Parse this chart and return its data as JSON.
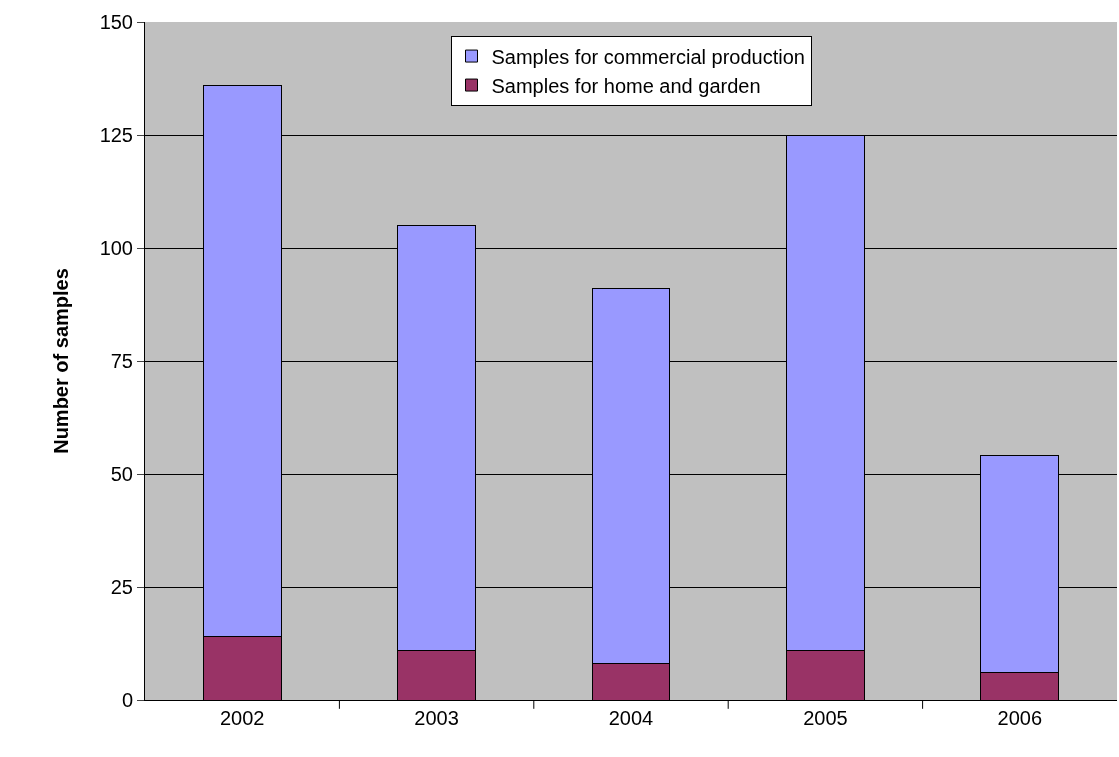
{
  "chart_data": {
    "type": "bar",
    "ylabel": "Number of samples",
    "categories": [
      "2002",
      "2003",
      "2004",
      "2005",
      "2006"
    ],
    "stacked": true,
    "series": [
      {
        "name": "Samples for home and garden",
        "color": "#993366",
        "values": [
          14,
          11,
          8,
          11,
          6
        ]
      },
      {
        "name": "Samples for commercial production",
        "color": "#9999ff",
        "values": [
          122,
          94,
          83,
          114,
          48
        ]
      }
    ],
    "ylim": [
      0,
      150
    ],
    "yticks": [
      0,
      25,
      50,
      75,
      100,
      125,
      150
    ],
    "grid": "y",
    "legend": "top"
  }
}
